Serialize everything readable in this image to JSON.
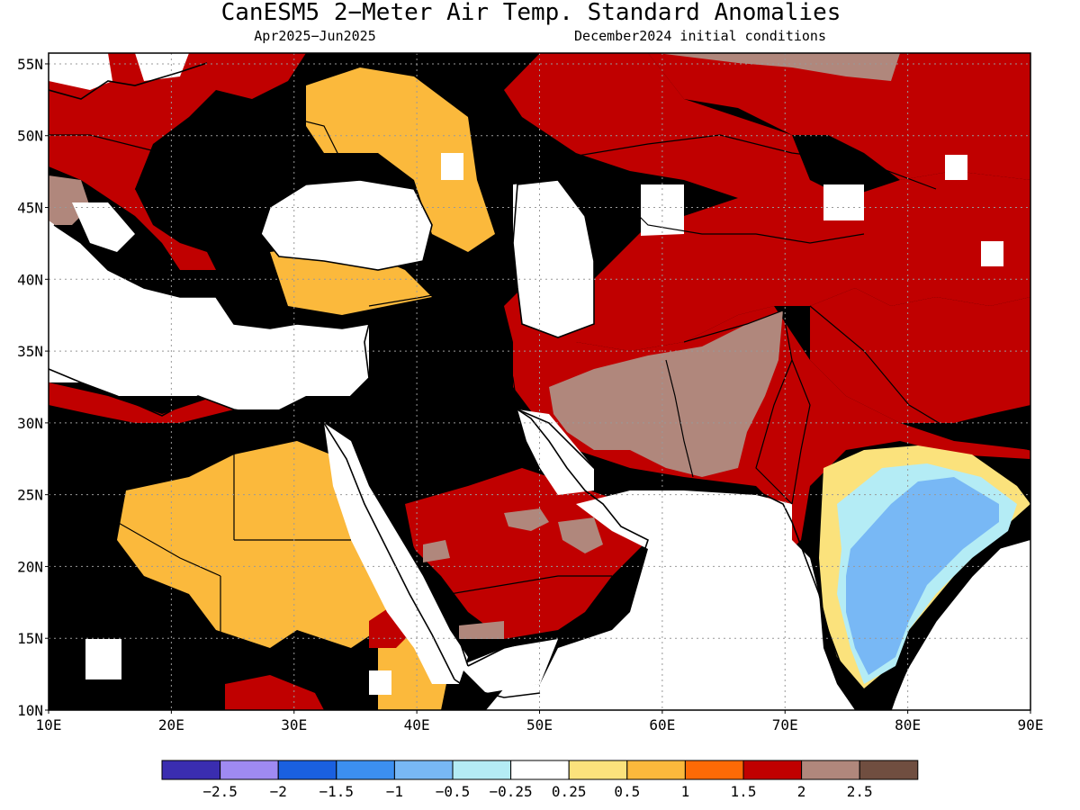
{
  "title": "CanESM5 2−Meter Air Temp. Standard Anomalies",
  "subtitle_left": "Apr2025−Jun2025",
  "subtitle_right": "December2024 initial conditions",
  "lat_labels": [
    "55N",
    "50N",
    "45N",
    "40N",
    "35N",
    "30N",
    "25N",
    "20N",
    "15N",
    "10N"
  ],
  "lon_labels": [
    "10E",
    "20E",
    "30E",
    "40E",
    "50E",
    "60E",
    "70E",
    "80E",
    "90E"
  ],
  "colorbar": {
    "colors": [
      "#3a2db0",
      "#9f8af2",
      "#1a60e0",
      "#3c8ff0",
      "#78b8f5",
      "#b4ecf5",
      "#ffffff",
      "#fbe27c",
      "#fbb93c",
      "#fd6a06",
      "#c00000",
      "#b0877c",
      "#704e40"
    ],
    "labels": [
      "−2.5",
      "−2",
      "−1.5",
      "−1",
      "−0.5",
      "−0.25",
      "0.25",
      "0.5",
      "1",
      "1.5",
      "2",
      "2.5"
    ]
  },
  "colors": {
    "ocean": "#ffffff",
    "level_0_5": "#fbb93c",
    "level_1": "#fd6a06",
    "level_1_5": "#c00000",
    "level_2": "#b0877c",
    "level_0_25": "#fbe27c",
    "level_neg_0_25": "#b4ecf5",
    "level_neg_0_5": "#78b8f5",
    "coast": "#000000",
    "grid": "#999999"
  }
}
